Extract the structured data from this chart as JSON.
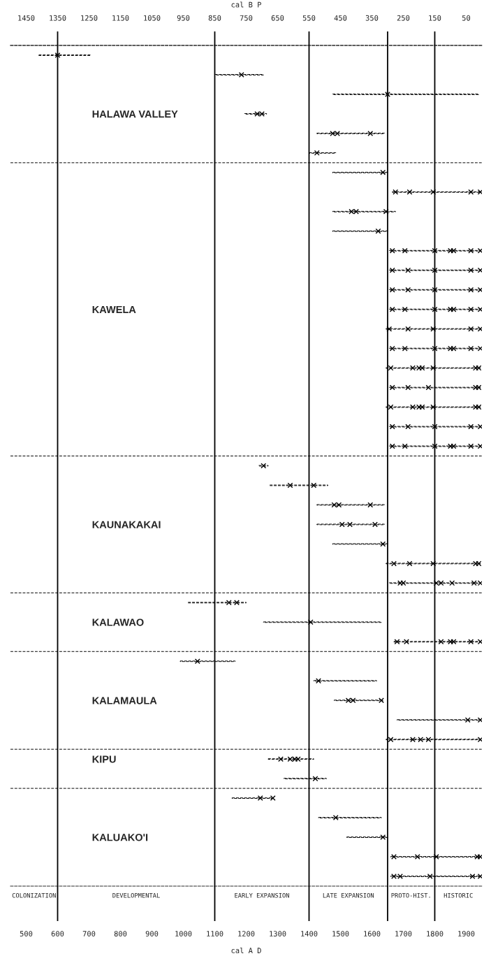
{
  "chart_data": {
    "type": "bar",
    "orientation": "horizontal",
    "xlabel": "cal A D",
    "x2label": "cal B P",
    "xlim": [
      450,
      1950
    ],
    "xticks": [
      500,
      600,
      700,
      800,
      900,
      1000,
      1100,
      1200,
      1300,
      1400,
      1500,
      1600,
      1700,
      1800,
      1900
    ],
    "x2lim": [
      1500,
      0
    ],
    "x2ticks": [
      1450,
      1350,
      1250,
      1150,
      1050,
      950,
      850,
      750,
      650,
      550,
      450,
      350,
      250,
      150,
      50
    ],
    "marker": "cross",
    "line_style": "dashed",
    "categories": [
      null,
      null,
      null,
      "HALAWA VALLEY",
      null,
      null,
      null,
      null,
      null,
      null,
      null,
      null,
      null,
      "KAWELA",
      null,
      null,
      null,
      null,
      null,
      null,
      null,
      null,
      null,
      null,
      "KAUNAKAKAI",
      null,
      null,
      null,
      null,
      "KALAWAO",
      null,
      null,
      null,
      "KALAMAULA",
      null,
      null,
      "KIPU",
      null,
      null,
      null,
      "KALUAKO'I",
      null,
      null
    ],
    "ref_lines": [
      {
        "axis": "x",
        "value": 600
      },
      {
        "axis": "x",
        "value": 1100
      },
      {
        "axis": "x",
        "value": 1400
      },
      {
        "axis": "x",
        "value": 1650
      },
      {
        "axis": "x",
        "value": 1800
      }
    ],
    "annotations": [
      "COLONIZATION",
      "DEVELOPMENTAL",
      "EARLY EXPANSION",
      "LATE EXPANSION",
      "PROTO-HIST.",
      "HISTORIC"
    ],
    "series": [
      {
        "color": "#000000",
        "base": [
          540,
          1100,
          1475,
          1195,
          1425,
          1400,
          1475,
          1665,
          1475,
          1475,
          1655,
          1655,
          1655,
          1655,
          1645,
          1655,
          1645,
          1655,
          1645,
          1655,
          1655,
          1240,
          1275,
          1425,
          1425,
          1475,
          1645,
          1655,
          1015,
          1255,
          1670,
          990,
          1415,
          1480,
          1680,
          1645,
          1270,
          1320,
          1155,
          1430,
          1520,
          1660,
          1660
        ],
        "values": [
          165,
          155,
          465,
          70,
          215,
          85,
          175,
          280,
          200,
          175,
          290,
          290,
          290,
          290,
          300,
          290,
          300,
          290,
          300,
          290,
          290,
          30,
          185,
          215,
          215,
          175,
          300,
          290,
          185,
          375,
          275,
          175,
          200,
          155,
          265,
          300,
          145,
          135,
          130,
          200,
          130,
          285,
          285
        ]
      },
      {
        "type": "scatter",
        "color": "#000000",
        "values": [
          600,
          1185,
          1650,
          1235,
          1475,
          1425,
          1635,
          1675,
          1535,
          1620,
          1665,
          1665,
          1665,
          1665,
          1655,
          1665,
          1660,
          1665,
          1660,
          1665,
          1665,
          1255,
          1340,
          1480,
          1505,
          1635,
          1670,
          1690,
          1145,
          1405,
          1680,
          1045,
          1430,
          1525,
          1905,
          1660,
          1310,
          1420,
          1245,
          1485,
          1635,
          1670,
          1670
        ]
      },
      {
        "type": "scatter",
        "color": "#000000",
        "values": [
          null,
          null,
          null,
          1250,
          1490,
          null,
          null,
          1720,
          1550,
          null,
          1705,
          1715,
          1715,
          1705,
          1715,
          1705,
          1730,
          1715,
          1730,
          1715,
          1705,
          null,
          1415,
          1495,
          1530,
          null,
          1720,
          1700,
          1170,
          null,
          1710,
          null,
          null,
          1540,
          1945,
          1730,
          1340,
          null,
          1285,
          null,
          null,
          1745,
          1690
        ]
      },
      {
        "type": "scatter",
        "color": "#000000",
        "values": [
          null,
          null,
          null,
          null,
          1595,
          null,
          null,
          1795,
          1645,
          null,
          1800,
          1800,
          1800,
          1800,
          1795,
          1800,
          1750,
          1780,
          1750,
          1800,
          1800,
          null,
          null,
          1595,
          1610,
          null,
          1795,
          1805,
          null,
          null,
          1820,
          null,
          null,
          1630,
          null,
          1755,
          1355,
          null,
          null,
          null,
          null,
          1805,
          1785
        ]
      },
      {
        "type": "scatter",
        "color": "#000000",
        "values": [
          null,
          null,
          null,
          null,
          null,
          null,
          null,
          1915,
          null,
          null,
          1850,
          1915,
          1915,
          1850,
          1915,
          1850,
          1760,
          1930,
          1760,
          1915,
          1850,
          null,
          null,
          null,
          null,
          null,
          1930,
          1820,
          null,
          null,
          1850,
          null,
          null,
          null,
          null,
          1780,
          1365,
          null,
          null,
          null,
          null,
          1935,
          1920
        ]
      },
      {
        "type": "scatter",
        "color": "#000000",
        "values": [
          null,
          null,
          null,
          null,
          null,
          null,
          null,
          1945,
          null,
          null,
          1860,
          1945,
          1945,
          1860,
          1945,
          1860,
          1795,
          1940,
          1795,
          1945,
          1860,
          null,
          null,
          null,
          null,
          null,
          1940,
          1855,
          null,
          null,
          1860,
          null,
          null,
          null,
          null,
          1945,
          null,
          null,
          null,
          null,
          null,
          1945,
          1945
        ]
      },
      {
        "type": "scatter",
        "color": "#000000",
        "values": [
          null,
          null,
          null,
          null,
          null,
          null,
          null,
          null,
          null,
          null,
          1915,
          null,
          null,
          1915,
          null,
          1915,
          1930,
          null,
          1930,
          null,
          1915,
          null,
          null,
          null,
          null,
          null,
          null,
          1925,
          null,
          null,
          1915,
          null,
          null,
          null,
          null,
          null,
          null,
          null,
          null,
          null,
          null,
          null,
          null
        ]
      },
      {
        "type": "scatter",
        "color": "#000000",
        "values": [
          null,
          null,
          null,
          null,
          null,
          null,
          null,
          null,
          null,
          null,
          1945,
          null,
          null,
          1945,
          null,
          1945,
          1940,
          null,
          1940,
          null,
          1945,
          null,
          null,
          null,
          null,
          null,
          null,
          1945,
          null,
          null,
          1945,
          null,
          null,
          null,
          null,
          null,
          null,
          null,
          null,
          null,
          null,
          null,
          null
        ]
      }
    ]
  }
}
